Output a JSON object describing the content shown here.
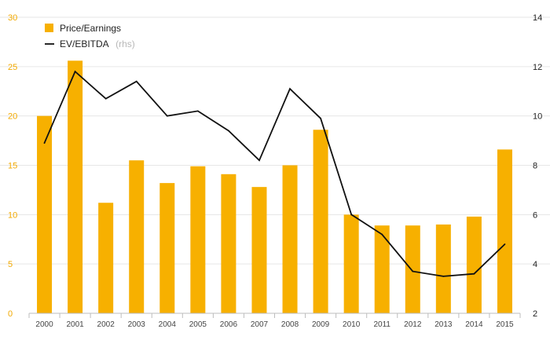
{
  "chart_data": {
    "type": "bar",
    "title": "",
    "xlabel": "",
    "ylabel": "",
    "ylabel_right": "",
    "categories": [
      "2000",
      "2001",
      "2002",
      "2003",
      "2004",
      "2005",
      "2006",
      "2007",
      "2008",
      "2009",
      "2010",
      "2011",
      "2012",
      "2013",
      "2014",
      "2015"
    ],
    "series": [
      {
        "name": "Price/Earnings",
        "type": "bar",
        "axis": "left",
        "color": "#f7b000",
        "values": [
          20.0,
          25.6,
          11.2,
          15.5,
          13.2,
          14.9,
          14.1,
          12.8,
          15.0,
          18.6,
          10.0,
          8.9,
          8.9,
          9.0,
          9.8,
          16.6
        ]
      },
      {
        "name": "EV/EBITDA",
        "name_suffix": "(rhs)",
        "type": "line",
        "axis": "right",
        "color": "#111111",
        "values": [
          8.9,
          11.8,
          10.7,
          11.4,
          10.0,
          10.2,
          9.4,
          8.2,
          11.1,
          9.9,
          6.0,
          5.2,
          3.7,
          3.5,
          3.6,
          4.8
        ]
      }
    ],
    "y_left": {
      "min": 0,
      "max": 30,
      "ticks": [
        0,
        5,
        10,
        15,
        20,
        25,
        30
      ]
    },
    "y_right": {
      "min": 2,
      "max": 14,
      "ticks": [
        2,
        4,
        6,
        8,
        10,
        12,
        14
      ]
    },
    "grid": true,
    "legend_position": "top-left"
  }
}
